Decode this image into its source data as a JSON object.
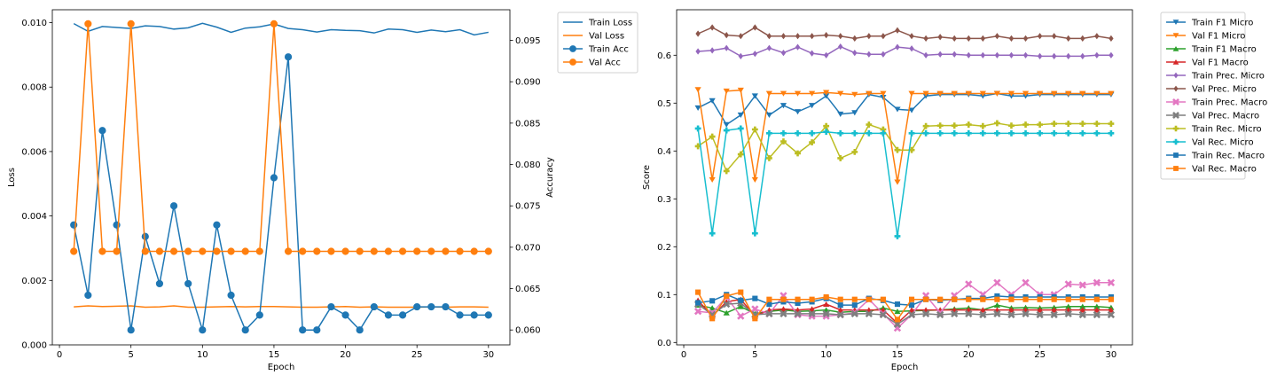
{
  "chart_data": [
    {
      "type": "line",
      "title": "",
      "xlabel": "Epoch",
      "ylabel": "Loss",
      "y2label": "Accuracy",
      "xlim": [
        -0.5,
        31.5
      ],
      "ylim": [
        0.0,
        0.0104
      ],
      "y2lim": [
        0.0582,
        0.0987
      ],
      "xticks": [
        0,
        5,
        10,
        15,
        20,
        25,
        30
      ],
      "yticks": [
        0.0,
        0.002,
        0.004,
        0.006,
        0.008,
        0.01
      ],
      "ytick_labels": [
        "0.000",
        "0.002",
        "0.004",
        "0.006",
        "0.008",
        "0.010"
      ],
      "y2ticks": [
        0.06,
        0.065,
        0.07,
        0.075,
        0.08,
        0.085,
        0.09,
        0.095
      ],
      "y2tick_labels": [
        "0.060",
        "0.065",
        "0.070",
        "0.075",
        "0.080",
        "0.085",
        "0.090",
        "0.095"
      ],
      "grid": false,
      "legend_position": "outside-upper-right",
      "x": [
        1,
        2,
        3,
        4,
        5,
        6,
        7,
        8,
        9,
        10,
        11,
        12,
        13,
        14,
        15,
        16,
        17,
        18,
        19,
        20,
        21,
        22,
        23,
        24,
        25,
        26,
        27,
        28,
        29,
        30
      ],
      "series": [
        {
          "name": "Train Loss",
          "axis": "left",
          "color": "#1f77b4",
          "marker": "none",
          "values": [
            0.00997,
            0.00973,
            0.00988,
            0.00985,
            0.00982,
            0.0099,
            0.00988,
            0.0098,
            0.00984,
            0.00998,
            0.00986,
            0.0097,
            0.00983,
            0.00987,
            0.00996,
            0.00982,
            0.00978,
            0.00971,
            0.00978,
            0.00976,
            0.00975,
            0.00968,
            0.0098,
            0.00978,
            0.0097,
            0.00977,
            0.00972,
            0.00978,
            0.00962,
            0.0097
          ]
        },
        {
          "name": "Val Loss",
          "axis": "left",
          "color": "#ff7f0e",
          "marker": "none",
          "values": [
            0.00118,
            0.00121,
            0.00119,
            0.0012,
            0.00121,
            0.00117,
            0.00118,
            0.00121,
            0.00117,
            0.00117,
            0.00118,
            0.00119,
            0.00118,
            0.00119,
            0.00119,
            0.00118,
            0.00117,
            0.00117,
            0.00118,
            0.00119,
            0.00117,
            0.00118,
            0.00117,
            0.00117,
            0.00117,
            0.00118,
            0.00117,
            0.00118,
            0.00118,
            0.00117
          ]
        },
        {
          "name": "Train Acc",
          "axis": "right",
          "color": "#1f77b4",
          "marker": "circle",
          "values": [
            0.0727,
            0.0642,
            0.0841,
            0.0727,
            0.06,
            0.0713,
            0.0656,
            0.075,
            0.0656,
            0.06,
            0.0727,
            0.0642,
            0.06,
            0.0618,
            0.0784,
            0.093,
            0.06,
            0.06,
            0.0628,
            0.0618,
            0.06,
            0.0628,
            0.0618,
            0.0618,
            0.0628,
            0.0628,
            0.0628,
            0.0618,
            0.0618,
            0.0618
          ]
        },
        {
          "name": "Val Acc",
          "axis": "right",
          "color": "#ff7f0e",
          "marker": "circle",
          "values": [
            0.0695,
            0.097,
            0.0695,
            0.0695,
            0.097,
            0.0695,
            0.0695,
            0.0695,
            0.0695,
            0.0695,
            0.0695,
            0.0695,
            0.0695,
            0.0695,
            0.097,
            0.0695,
            0.0695,
            0.0695,
            0.0695,
            0.0695,
            0.0695,
            0.0695,
            0.0695,
            0.0695,
            0.0695,
            0.0695,
            0.0695,
            0.0695,
            0.0695,
            0.0695
          ]
        }
      ]
    },
    {
      "type": "line",
      "title": "",
      "xlabel": "Epoch",
      "ylabel": "Score",
      "xlim": [
        -0.5,
        31.5
      ],
      "ylim": [
        -0.005,
        0.695
      ],
      "xticks": [
        0,
        5,
        10,
        15,
        20,
        25,
        30
      ],
      "yticks": [
        0.0,
        0.1,
        0.2,
        0.3,
        0.4,
        0.5,
        0.6
      ],
      "ytick_labels": [
        "0.0",
        "0.1",
        "0.2",
        "0.3",
        "0.4",
        "0.5",
        "0.6"
      ],
      "grid": false,
      "legend_position": "outside-upper-right",
      "x": [
        1,
        2,
        3,
        4,
        5,
        6,
        7,
        8,
        9,
        10,
        11,
        12,
        13,
        14,
        15,
        16,
        17,
        18,
        19,
        20,
        21,
        22,
        23,
        24,
        25,
        26,
        27,
        28,
        29,
        30
      ],
      "series": [
        {
          "name": "Train F1 Micro",
          "color": "#1f77b4",
          "marker": "tri-down",
          "values": [
            0.49,
            0.505,
            0.455,
            0.475,
            0.515,
            0.475,
            0.495,
            0.482,
            0.495,
            0.515,
            0.477,
            0.48,
            0.518,
            0.512,
            0.487,
            0.485,
            0.515,
            0.518,
            0.518,
            0.518,
            0.515,
            0.52,
            0.515,
            0.515,
            0.518,
            0.518,
            0.518,
            0.518,
            0.518,
            0.518
          ]
        },
        {
          "name": "Val F1 Micro",
          "color": "#ff7f0e",
          "marker": "tri-down",
          "values": [
            0.528,
            0.34,
            0.525,
            0.527,
            0.34,
            0.52,
            0.52,
            0.52,
            0.52,
            0.522,
            0.52,
            0.518,
            0.52,
            0.52,
            0.335,
            0.52,
            0.52,
            0.52,
            0.52,
            0.52,
            0.52,
            0.52,
            0.52,
            0.52,
            0.52,
            0.52,
            0.52,
            0.52,
            0.52,
            0.52
          ]
        },
        {
          "name": "Train F1 Macro",
          "color": "#2ca02c",
          "marker": "tri-up",
          "values": [
            0.078,
            0.072,
            0.062,
            0.075,
            0.06,
            0.065,
            0.068,
            0.065,
            0.066,
            0.068,
            0.063,
            0.065,
            0.065,
            0.072,
            0.065,
            0.066,
            0.067,
            0.068,
            0.07,
            0.072,
            0.068,
            0.078,
            0.072,
            0.073,
            0.072,
            0.073,
            0.075,
            0.075,
            0.075,
            0.073
          ]
        },
        {
          "name": "Val F1 Macro",
          "color": "#d62728",
          "marker": "tri-up",
          "values": [
            0.088,
            0.055,
            0.085,
            0.09,
            0.055,
            0.068,
            0.07,
            0.068,
            0.07,
            0.08,
            0.068,
            0.068,
            0.068,
            0.068,
            0.04,
            0.068,
            0.068,
            0.068,
            0.068,
            0.068,
            0.068,
            0.068,
            0.068,
            0.068,
            0.068,
            0.068,
            0.068,
            0.068,
            0.068,
            0.068
          ]
        },
        {
          "name": "Train Prec. Micro",
          "color": "#9467bd",
          "marker": "diamond",
          "values": [
            0.608,
            0.61,
            0.615,
            0.598,
            0.603,
            0.615,
            0.605,
            0.617,
            0.604,
            0.6,
            0.618,
            0.605,
            0.602,
            0.602,
            0.617,
            0.614,
            0.6,
            0.602,
            0.602,
            0.6,
            0.6,
            0.6,
            0.6,
            0.6,
            0.598,
            0.598,
            0.598,
            0.598,
            0.6,
            0.6
          ]
        },
        {
          "name": "Val Prec. Micro",
          "color": "#8c564b",
          "marker": "diamond",
          "values": [
            0.645,
            0.658,
            0.642,
            0.64,
            0.658,
            0.64,
            0.64,
            0.64,
            0.64,
            0.642,
            0.64,
            0.635,
            0.64,
            0.64,
            0.652,
            0.64,
            0.635,
            0.638,
            0.635,
            0.635,
            0.635,
            0.64,
            0.635,
            0.635,
            0.64,
            0.64,
            0.635,
            0.635,
            0.64,
            0.635
          ]
        },
        {
          "name": "Train Prec. Macro",
          "color": "#e377c2",
          "marker": "x",
          "values": [
            0.065,
            0.062,
            0.095,
            0.055,
            0.07,
            0.06,
            0.098,
            0.058,
            0.055,
            0.055,
            0.058,
            0.062,
            0.09,
            0.06,
            0.03,
            0.058,
            0.098,
            0.062,
            0.098,
            0.122,
            0.1,
            0.125,
            0.1,
            0.125,
            0.1,
            0.1,
            0.122,
            0.12,
            0.125,
            0.125
          ]
        },
        {
          "name": "Val Prec. Macro",
          "color": "#7f7f7f",
          "marker": "x",
          "values": [
            0.08,
            0.058,
            0.08,
            0.082,
            0.058,
            0.06,
            0.06,
            0.06,
            0.06,
            0.06,
            0.058,
            0.06,
            0.06,
            0.058,
            0.038,
            0.058,
            0.06,
            0.058,
            0.06,
            0.06,
            0.058,
            0.06,
            0.058,
            0.06,
            0.058,
            0.058,
            0.06,
            0.058,
            0.058,
            0.058
          ]
        },
        {
          "name": "Train Rec. Micro",
          "color": "#bcbd22",
          "marker": "plus",
          "values": [
            0.41,
            0.43,
            0.358,
            0.393,
            0.445,
            0.385,
            0.42,
            0.395,
            0.418,
            0.452,
            0.385,
            0.398,
            0.455,
            0.445,
            0.402,
            0.402,
            0.452,
            0.453,
            0.453,
            0.455,
            0.452,
            0.458,
            0.453,
            0.455,
            0.455,
            0.457,
            0.457,
            0.457,
            0.457,
            0.457
          ]
        },
        {
          "name": "Val Rec. Micro",
          "color": "#17becf",
          "marker": "plus",
          "values": [
            0.447,
            0.228,
            0.443,
            0.447,
            0.228,
            0.437,
            0.437,
            0.437,
            0.437,
            0.44,
            0.437,
            0.437,
            0.437,
            0.437,
            0.222,
            0.437,
            0.437,
            0.437,
            0.437,
            0.437,
            0.437,
            0.437,
            0.437,
            0.437,
            0.437,
            0.437,
            0.437,
            0.437,
            0.437,
            0.437
          ]
        },
        {
          "name": "Train Rec. Macro",
          "color": "#1f77b4",
          "marker": "square",
          "values": [
            0.083,
            0.087,
            0.1,
            0.088,
            0.092,
            0.08,
            0.085,
            0.082,
            0.085,
            0.092,
            0.078,
            0.078,
            0.092,
            0.088,
            0.08,
            0.078,
            0.09,
            0.088,
            0.09,
            0.092,
            0.092,
            0.097,
            0.095,
            0.095,
            0.095,
            0.095,
            0.095,
            0.095,
            0.095,
            0.095
          ]
        },
        {
          "name": "Val Rec. Macro",
          "color": "#ff7f0e",
          "marker": "square",
          "values": [
            0.105,
            0.05,
            0.097,
            0.105,
            0.05,
            0.09,
            0.09,
            0.09,
            0.09,
            0.095,
            0.09,
            0.09,
            0.09,
            0.09,
            0.048,
            0.09,
            0.09,
            0.09,
            0.09,
            0.09,
            0.09,
            0.09,
            0.09,
            0.09,
            0.09,
            0.09,
            0.09,
            0.09,
            0.09,
            0.09
          ]
        }
      ]
    }
  ]
}
